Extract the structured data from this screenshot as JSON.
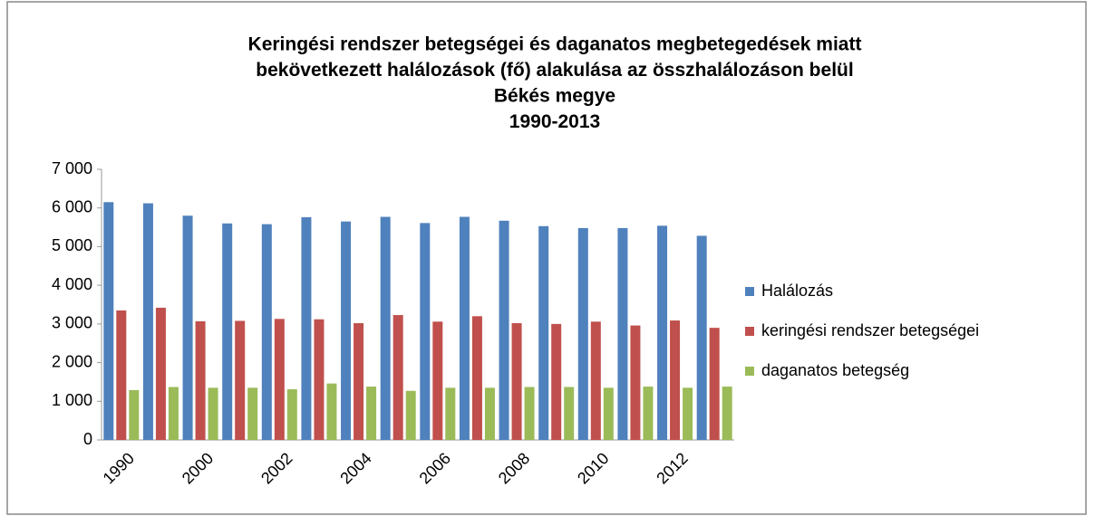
{
  "chart_data": {
    "type": "bar",
    "title": [
      "Keringési rendszer betegségei és daganatos megbetegedések miatt",
      "bekövetkezett halálozások (fő) alakulása az összhalálozáson belül",
      "Békés megye",
      "1990-2013"
    ],
    "categories": [
      "1990",
      null,
      "2000",
      null,
      "2002",
      null,
      "2004",
      null,
      "2006",
      null,
      "2008",
      null,
      "2010",
      null,
      "2012",
      null
    ],
    "series": [
      {
        "name": "Halálozás",
        "color": "#4f81bd",
        "values": [
          6150,
          6120,
          5800,
          5600,
          5580,
          5760,
          5650,
          5770,
          5610,
          5770,
          5670,
          5530,
          5480,
          5480,
          5540,
          5280
        ]
      },
      {
        "name": "keringési rendszer betegségei",
        "color": "#c0504d",
        "values": [
          3350,
          3420,
          3070,
          3080,
          3130,
          3120,
          3020,
          3230,
          3060,
          3200,
          3020,
          3000,
          3060,
          2960,
          3090,
          2900
        ]
      },
      {
        "name": "daganatos betegség",
        "color": "#9bbb59",
        "values": [
          1290,
          1370,
          1350,
          1350,
          1310,
          1460,
          1380,
          1270,
          1350,
          1350,
          1370,
          1370,
          1350,
          1380,
          1350,
          1380
        ]
      }
    ],
    "ylim": [
      0,
      7000
    ],
    "yticks": [
      0,
      {
        "value": 1000,
        "label": "1 000"
      },
      {
        "value": 2000,
        "label": "2 000"
      },
      {
        "value": 3000,
        "label": "3 000"
      },
      {
        "value": 4000,
        "label": "4 000"
      },
      {
        "value": 5000,
        "label": "5 000"
      },
      {
        "value": 6000,
        "label": "6 000"
      },
      {
        "value": 7000,
        "label": "7 000"
      }
    ],
    "grid": false,
    "legend": "right"
  }
}
